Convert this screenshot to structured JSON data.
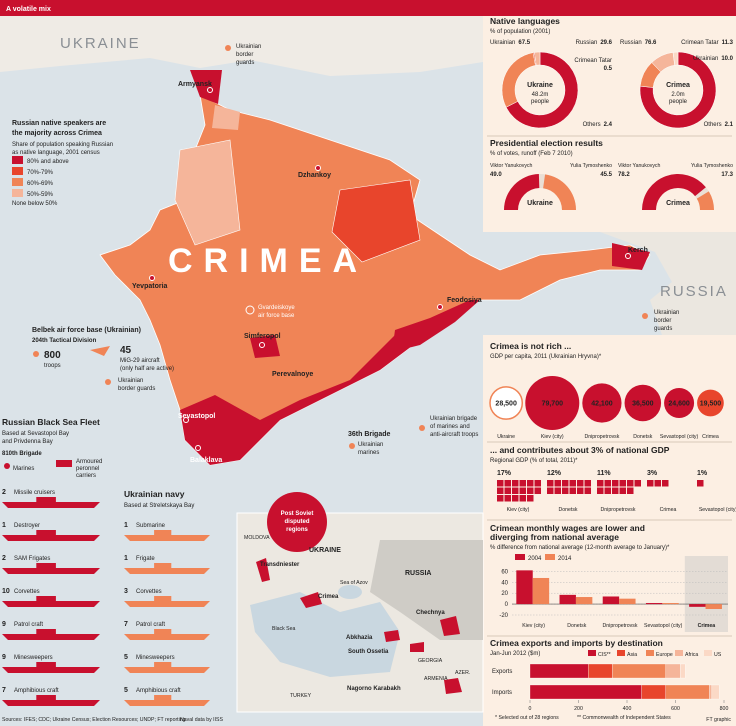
{
  "header": {
    "title": "A volatile mix"
  },
  "map": {
    "ukraine": "UKRAINE",
    "russia": "RUSSIA",
    "crimea": "CRIMEA",
    "cities": [
      "Armyansk",
      "Dzhankoy",
      "Yevpatoria",
      "Simferopol",
      "Perevalnoye",
      "Feodosiya",
      "Kerch",
      "Sevastopol",
      "Balaklava"
    ],
    "air_base": [
      "Gvardeiskoye",
      "air force base"
    ],
    "border_north": [
      "Ukrainian",
      "border",
      "guards"
    ],
    "border_kerch": [
      "Ukrainian",
      "border",
      "guards"
    ],
    "marines_36": {
      "title": "36th Brigade",
      "text": [
        "Ukrainian",
        "marines"
      ]
    },
    "marines_east": [
      "Ukrainian brigade",
      "of marines and",
      "anti-aircraft troops"
    ]
  },
  "legend": {
    "title": [
      "Russian native speakers are",
      "the majority across Crimea"
    ],
    "subtitle": [
      "Share of population speaking Russian",
      "as native language, 2001 census"
    ],
    "items": [
      "80% and above",
      "70%-79%",
      "60%-69%",
      "50%-59%"
    ],
    "colors": [
      "#c8102e",
      "#e8452c",
      "#f08456",
      "#f5b59a"
    ],
    "note": "None below 50%"
  },
  "belbek": {
    "title": "Belbek air force base (Ukrainian)",
    "division": "204th Tactical Division",
    "troops": {
      "count": 800,
      "label": "troops"
    },
    "aircraft": {
      "count": 45,
      "text": [
        "MiG-29 aircraft",
        "(only half are active)"
      ]
    },
    "guards": [
      "Ukrainian",
      "border guards"
    ]
  },
  "russian_fleet": {
    "title": "Russian Black Sea Fleet",
    "subtitle": [
      "Based at Sevastopol Bay",
      "and Privdenna Bay"
    ],
    "brigade": "810th Brigade",
    "marines": "Marines",
    "carriers": [
      "Armoured",
      "peronnel",
      "carriers"
    ],
    "ships": [
      {
        "count": 2,
        "name": "Missile cruisers"
      },
      {
        "count": 1,
        "name": "Destroyer"
      },
      {
        "count": 2,
        "name": "SAM Frigates"
      },
      {
        "count": 10,
        "name": "Corvettes"
      },
      {
        "count": 9,
        "name": "Patrol craft"
      },
      {
        "count": 9,
        "name": "Minesweepers"
      },
      {
        "count": 7,
        "name": "Amphibious craft"
      }
    ]
  },
  "ukrainian_navy": {
    "title": "Ukrainian navy",
    "subtitle": "Based at Streletskaya Bay",
    "ships": [
      {
        "count": 1,
        "name": "Submarine"
      },
      {
        "count": 1,
        "name": "Frigate"
      },
      {
        "count": 3,
        "name": "Corvettes"
      },
      {
        "count": 7,
        "name": "Patrol craft"
      },
      {
        "count": 5,
        "name": "Minesweepers"
      },
      {
        "count": 5,
        "name": "Amphibious craft"
      }
    ]
  },
  "inset": {
    "title": [
      "Post Soviet",
      "disputed",
      "regions"
    ],
    "labels": [
      "UKRAINE",
      "RUSSIA",
      "MOLDOVA",
      "Black Sea",
      "Sea of Azov",
      "GEORGIA",
      "ARMENIA",
      "TURKEY",
      "AZER."
    ],
    "regions": [
      "Transdniester",
      "Crimea",
      "Chechnya",
      "Abkhazia",
      "South Ossetia",
      "Nagorno Karabakh"
    ]
  },
  "chart_data": [
    {
      "type": "donut",
      "title": "Native languages",
      "subtitle": "% of population (2001)",
      "pies": [
        {
          "center": "Ukraine",
          "center_note": [
            "48.2m",
            "people"
          ],
          "categories": [
            "Ukrainian",
            "Russian",
            "Crimean Tatar",
            "Others"
          ],
          "values": [
            67.5,
            29.6,
            0.5,
            2.4
          ],
          "value_labels": [
            "67.5",
            "29.6",
            "0.5",
            "2.4"
          ],
          "colors": [
            "#c8102e",
            "#f08456",
            "#e8452c",
            "#f5b59a"
          ]
        },
        {
          "center": "Crimea",
          "center_note": [
            "2.0m",
            "people"
          ],
          "categories": [
            "Russian",
            "Crimean Tatar",
            "Ukrainian",
            "Others"
          ],
          "values": [
            76.6,
            11.3,
            10.0,
            2.1
          ],
          "value_labels": [
            "76.6",
            "11.3",
            "10.0",
            "2.1"
          ],
          "colors": [
            "#c8102e",
            "#f08456",
            "#f5b59a",
            "#fbd9c6"
          ]
        }
      ]
    },
    {
      "type": "half_donut",
      "title": "Presidential election results",
      "subtitle": "% of votes, runoff (Feb 7 2010)",
      "categories": [
        "Viktor Yanukovych",
        "Yulia Tymoshenko"
      ],
      "colors": [
        "#c8102e",
        "#f08456"
      ],
      "pies": [
        {
          "center": "Ukraine",
          "values": [
            49.0,
            45.5
          ],
          "value_labels": [
            "49.0",
            "45.5"
          ]
        },
        {
          "center": "Crimea",
          "values": [
            78.2,
            17.3
          ],
          "value_labels": [
            "78.2",
            "17.3"
          ]
        }
      ]
    },
    {
      "type": "bubble",
      "title": "Crimea is not rich ...",
      "subtitle": "GDP per capita, 2011 (Ukrainian Hryvna)*",
      "categories": [
        "Ukraine",
        "Kiev (city)",
        "Dnipropetrovsk",
        "Donetsk",
        "Sevastopol (city)",
        "Crimea"
      ],
      "values": [
        28500,
        79700,
        42100,
        36500,
        24600,
        19500
      ],
      "value_labels": [
        "28,500",
        "79,700",
        "42,100",
        "36,500",
        "24,600",
        "19,500"
      ],
      "colors": [
        "#ffffff",
        "#c8102e",
        "#c8102e",
        "#c8102e",
        "#c8102e",
        "#e8452c"
      ]
    },
    {
      "type": "waffle",
      "title": "... and contributes about 3% of national GDP",
      "subtitle": "Regional GDP (% of total, 2011)*",
      "categories": [
        "Kiev (city)",
        "Donetsk",
        "Dnipropetrovsk",
        "Crimea",
        "Sevastopol (city)"
      ],
      "values": [
        17,
        12,
        11,
        3,
        1
      ],
      "value_labels": [
        "17%",
        "12%",
        "11%",
        "3%",
        "1%"
      ],
      "color": "#c8102e"
    },
    {
      "type": "bar",
      "title": [
        "Crimean monthly wages are lower and",
        "diverging from national average"
      ],
      "subtitle": "% difference from national average (12-month average to January)*",
      "categories": [
        "Kiev (city)",
        "Donetsk",
        "Dnipropetrovsk",
        "Sevastopol (city)",
        "Crimea"
      ],
      "series": [
        {
          "name": "2004",
          "color": "#c8102e",
          "values": [
            62,
            17,
            14,
            2,
            -5
          ]
        },
        {
          "name": "2014",
          "color": "#f08456",
          "values": [
            48,
            13,
            10,
            2,
            -9
          ]
        }
      ],
      "ylim": [
        -20,
        70
      ],
      "yticks": [
        -20,
        0,
        20,
        40,
        60
      ],
      "grid": true
    },
    {
      "type": "hbar_stacked",
      "title": "Crimea exports and imports by destination",
      "subtitle": "Jan-Jun 2012 ($m)",
      "categories": [
        "Exports",
        "Imports"
      ],
      "series": [
        {
          "name": "CIS**",
          "color": "#c8102e",
          "values": [
            240,
            460
          ]
        },
        {
          "name": "Asia",
          "color": "#e8452c",
          "values": [
            100,
            100
          ]
        },
        {
          "name": "Europe",
          "color": "#f08456",
          "values": [
            220,
            180
          ]
        },
        {
          "name": "Africa",
          "color": "#f5b59a",
          "values": [
            60,
            10
          ]
        },
        {
          "name": "US",
          "color": "#fbd9c6",
          "values": [
            20,
            30
          ]
        }
      ],
      "xlim": [
        0,
        800
      ],
      "xticks": [
        0,
        200,
        400,
        600,
        800
      ]
    }
  ],
  "notes": [
    "* Selected out of 28 regions",
    "** Commonwealth of Independent States"
  ],
  "footer": {
    "sources": "Sources: IFES; CDC; Ukraine Census; Election Resources; UNDP; FT reporting",
    "naval": "Naval data by IISS",
    "credit": "FT graphic"
  }
}
